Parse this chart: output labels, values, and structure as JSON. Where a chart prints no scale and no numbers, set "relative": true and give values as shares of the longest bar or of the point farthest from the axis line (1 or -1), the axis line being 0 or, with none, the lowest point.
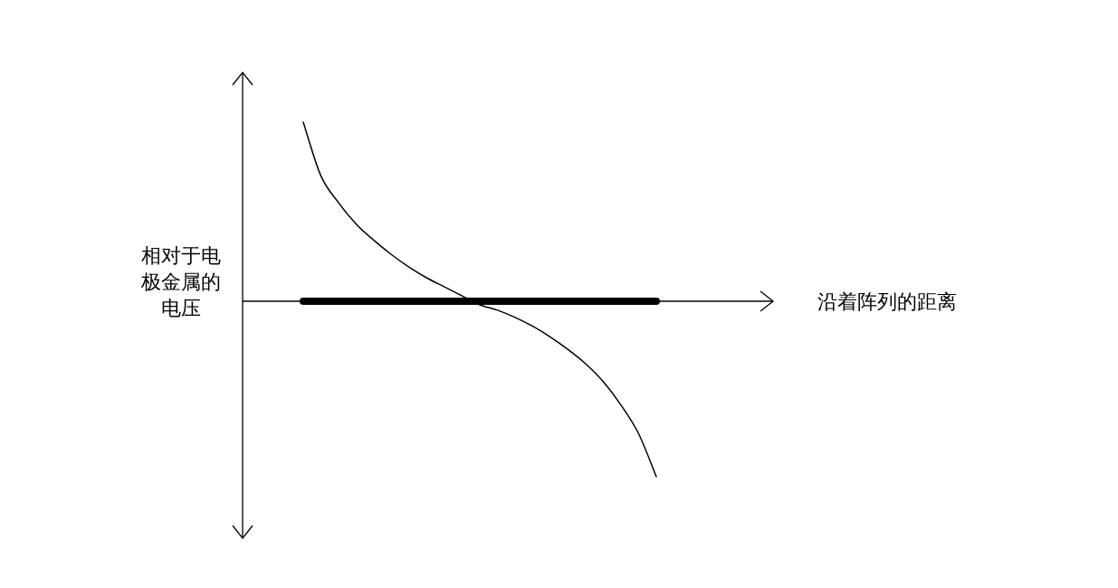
{
  "chart_data": {
    "type": "line",
    "relative": true,
    "xlabel": "沿着阵列的距离",
    "ylabel": "相对于电极金属的电压",
    "categories": [
      null,
      null,
      null,
      null,
      null,
      null,
      null,
      null,
      null,
      null,
      null,
      null,
      null,
      null,
      null,
      null,
      null,
      null,
      null,
      null,
      null,
      null,
      null,
      null,
      null,
      null,
      null,
      null,
      null,
      null
    ],
    "series": [
      {
        "color": "#000000",
        "values": [
          null,
          null,
          null,
          1,
          0.7,
          0.55,
          0.43,
          0.34,
          0.26,
          0.19,
          0.13,
          0.08,
          0.03,
          -0.02,
          -0.05,
          -0.09,
          -0.14,
          -0.2,
          -0.27,
          -0.35,
          -0.45,
          -0.58,
          -0.74,
          -0.98,
          null,
          null,
          null,
          null,
          null,
          null
        ]
      },
      {
        "color": "#000000",
        "values": [
          null,
          null,
          null,
          0,
          0,
          0,
          0,
          0,
          0,
          0,
          0,
          0,
          0,
          0,
          0,
          0,
          0,
          0,
          0,
          0,
          0,
          0,
          0,
          0,
          null,
          null,
          null,
          null,
          null,
          null
        ]
      }
    ]
  }
}
